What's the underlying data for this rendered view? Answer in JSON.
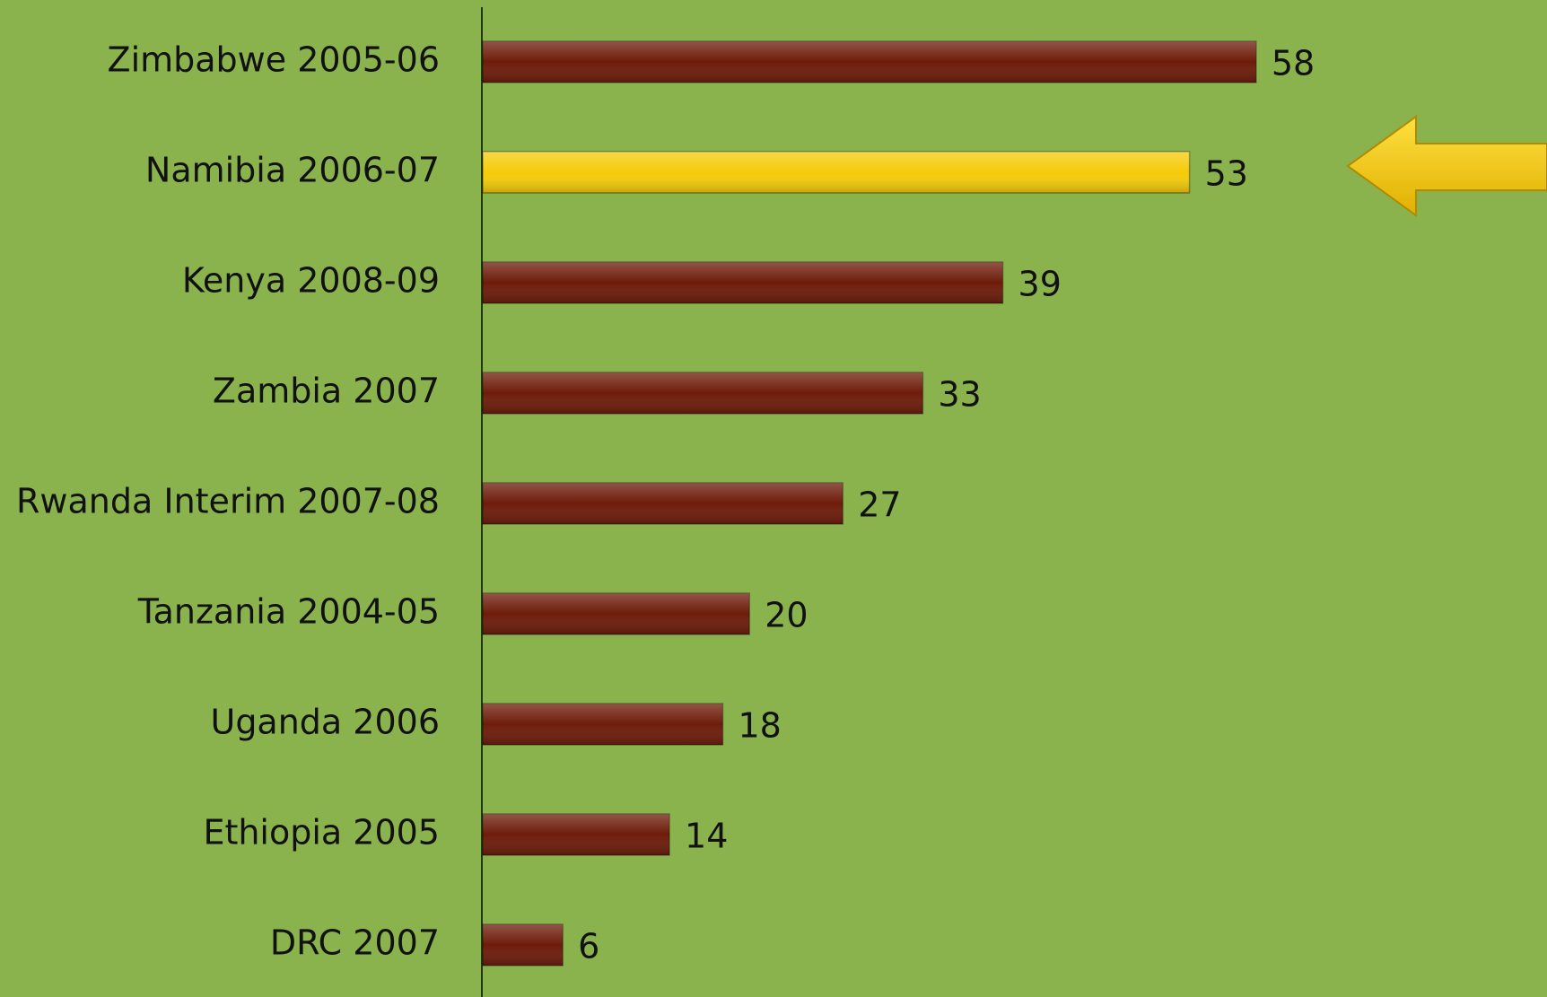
{
  "chart_data": {
    "type": "bar",
    "orientation": "horizontal",
    "categories": [
      "Zimbabwe 2005-06",
      "Namibia 2006-07",
      "Kenya 2008-09",
      "Zambia 2007",
      "Rwanda Interim 2007-08",
      "Tanzania 2004-05",
      "Uganda 2006",
      "Ethiopia 2005",
      "DRC 2007"
    ],
    "values": [
      58,
      53,
      39,
      33,
      27,
      20,
      18,
      14,
      6
    ],
    "colors": [
      "#6e1c0a",
      "#f5cc0a",
      "#6e1c0a",
      "#6e1c0a",
      "#6e1c0a",
      "#6e1c0a",
      "#6e1c0a",
      "#6e1c0a",
      "#6e1c0a"
    ]
  }
}
